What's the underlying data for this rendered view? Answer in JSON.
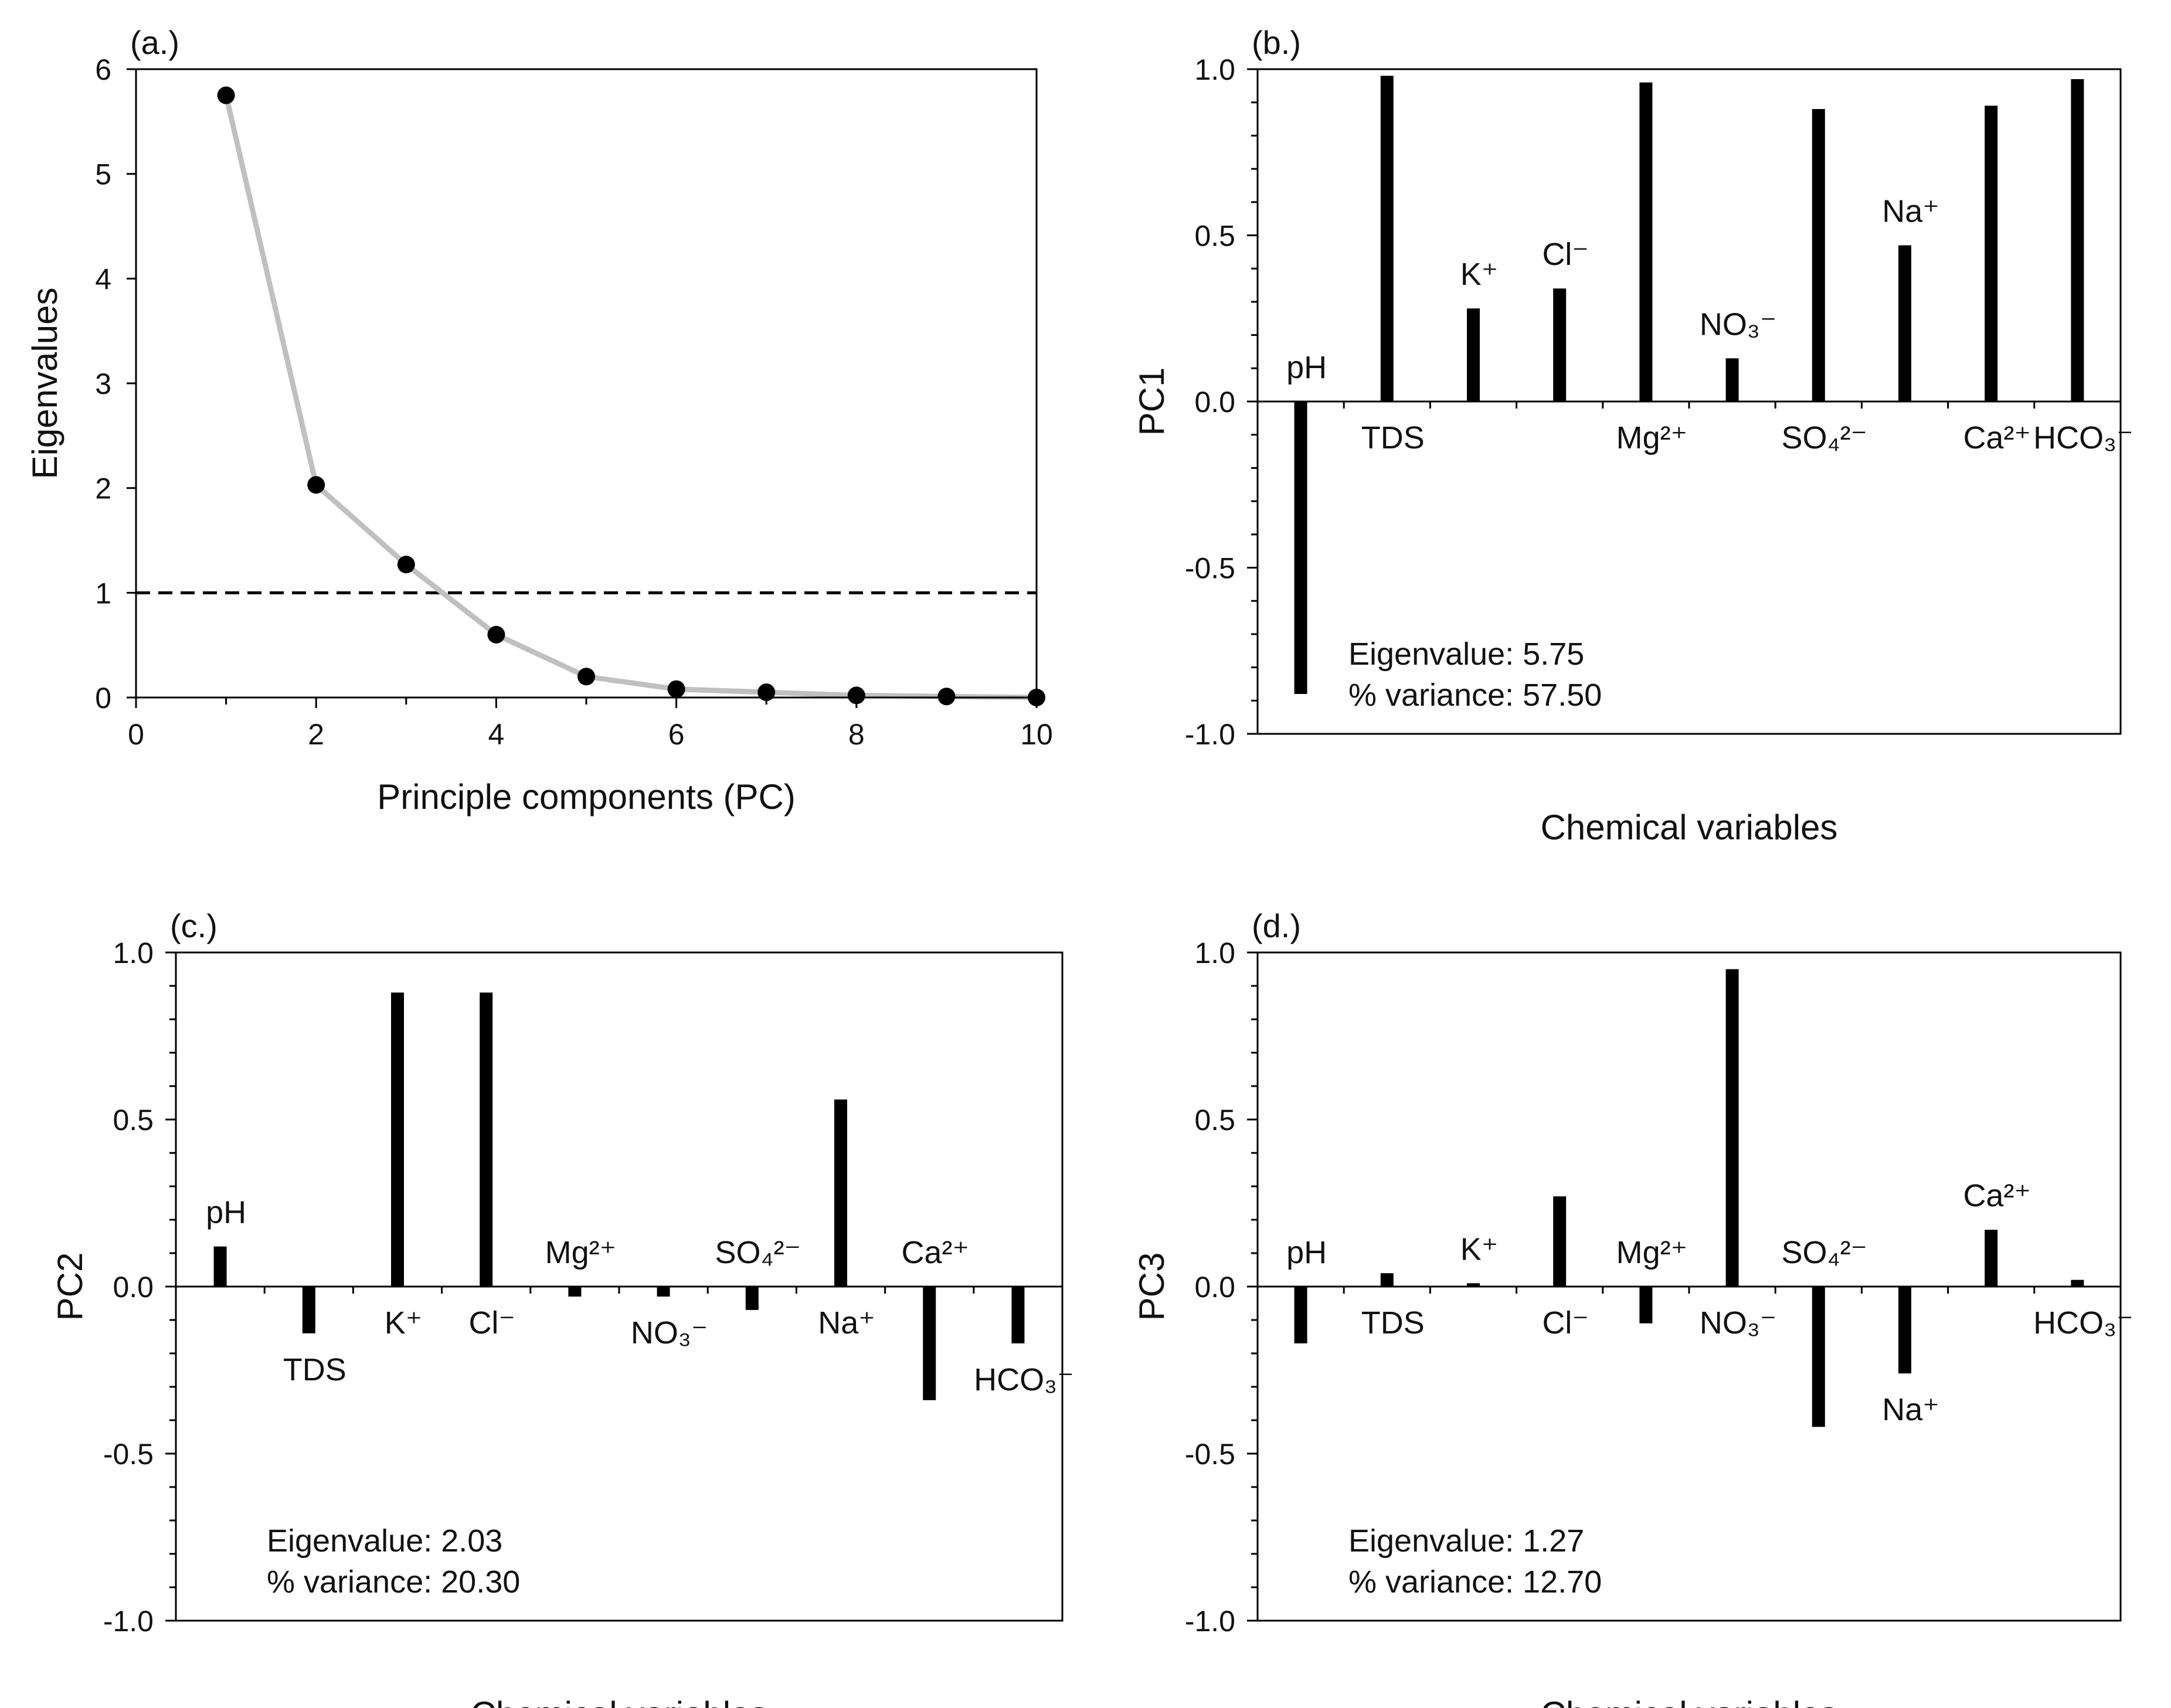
{
  "colors": {
    "bar": "#000000",
    "line": "#c0c0c0",
    "point": "#000000",
    "axis": "#000000"
  },
  "chart_data": [
    {
      "id": "a",
      "type": "line",
      "panel_label": "(a.)",
      "xlabel": "Principle components (PC)",
      "ylabel": "Eigenvalues",
      "x": [
        1,
        2,
        3,
        4,
        5,
        6,
        7,
        8,
        9,
        10
      ],
      "y": [
        5.75,
        2.03,
        1.27,
        0.6,
        0.2,
        0.08,
        0.05,
        0.02,
        0.01,
        0.0
      ],
      "xlim": [
        0,
        10
      ],
      "ylim": [
        0,
        6
      ],
      "xticks": [
        "0",
        "2",
        "4",
        "6",
        "8",
        "10"
      ],
      "yticks": [
        "0",
        "1",
        "2",
        "3",
        "4",
        "5",
        "6"
      ],
      "reference_line": 1,
      "grid": false
    },
    {
      "id": "b",
      "type": "bar",
      "panel_label": "(b.)",
      "xlabel": "Chemical variables",
      "ylabel": "PC1",
      "ylim": [
        -1,
        1
      ],
      "yticks": [
        "-1.0",
        "-0.5",
        "0.0",
        "0.5",
        "1.0"
      ],
      "categories": [
        "pH",
        "TDS",
        "K⁺",
        "Cl⁻",
        "Mg²⁺",
        "NO₃⁻",
        "SO₄²⁻",
        "Na⁺",
        "Ca²⁺",
        "HCO₃⁻"
      ],
      "values": [
        -0.88,
        0.98,
        0.28,
        0.34,
        0.96,
        0.13,
        0.88,
        0.47,
        0.89,
        0.97
      ],
      "annotations": [
        "Eigenvalue: 5.75",
        "% variance: 57.50"
      ],
      "annotation_placement": "bottom-left",
      "grid": false
    },
    {
      "id": "c",
      "type": "bar",
      "panel_label": "(c.)",
      "xlabel": "Chemical variables",
      "ylabel": "PC2",
      "ylim": [
        -1,
        1
      ],
      "yticks": [
        "-1.0",
        "-0.5",
        "0.0",
        "0.5",
        "1.0"
      ],
      "categories": [
        "pH",
        "TDS",
        "K⁺",
        "Cl⁻",
        "Mg²⁺",
        "NO₃⁻",
        "SO₄²⁻",
        "Na⁺",
        "Ca²⁺",
        "HCO₃⁻"
      ],
      "values": [
        0.12,
        -0.14,
        0.88,
        0.88,
        -0.03,
        -0.03,
        -0.07,
        0.56,
        -0.34,
        -0.17
      ],
      "annotations": [
        "Eigenvalue: 2.03",
        "% variance: 20.30"
      ],
      "annotation_placement": "bottom-left",
      "grid": false
    },
    {
      "id": "d",
      "type": "bar",
      "panel_label": "(d.)",
      "xlabel": "Chemical variables",
      "ylabel": "PC3",
      "ylim": [
        -1,
        1
      ],
      "yticks": [
        "-1.0",
        "-0.5",
        "0.0",
        "0.5",
        "1.0"
      ],
      "categories": [
        "pH",
        "TDS",
        "K⁺",
        "Cl⁻",
        "Mg²⁺",
        "NO₃⁻",
        "SO₄²⁻",
        "Na⁺",
        "Ca²⁺",
        "HCO₃⁻"
      ],
      "values": [
        -0.17,
        0.04,
        0.01,
        0.27,
        -0.11,
        0.95,
        -0.42,
        -0.26,
        0.17,
        0.02
      ],
      "annotations": [
        "Eigenvalue: 1.27",
        "% variance: 12.70"
      ],
      "annotation_placement": "bottom-left",
      "grid": false
    }
  ]
}
